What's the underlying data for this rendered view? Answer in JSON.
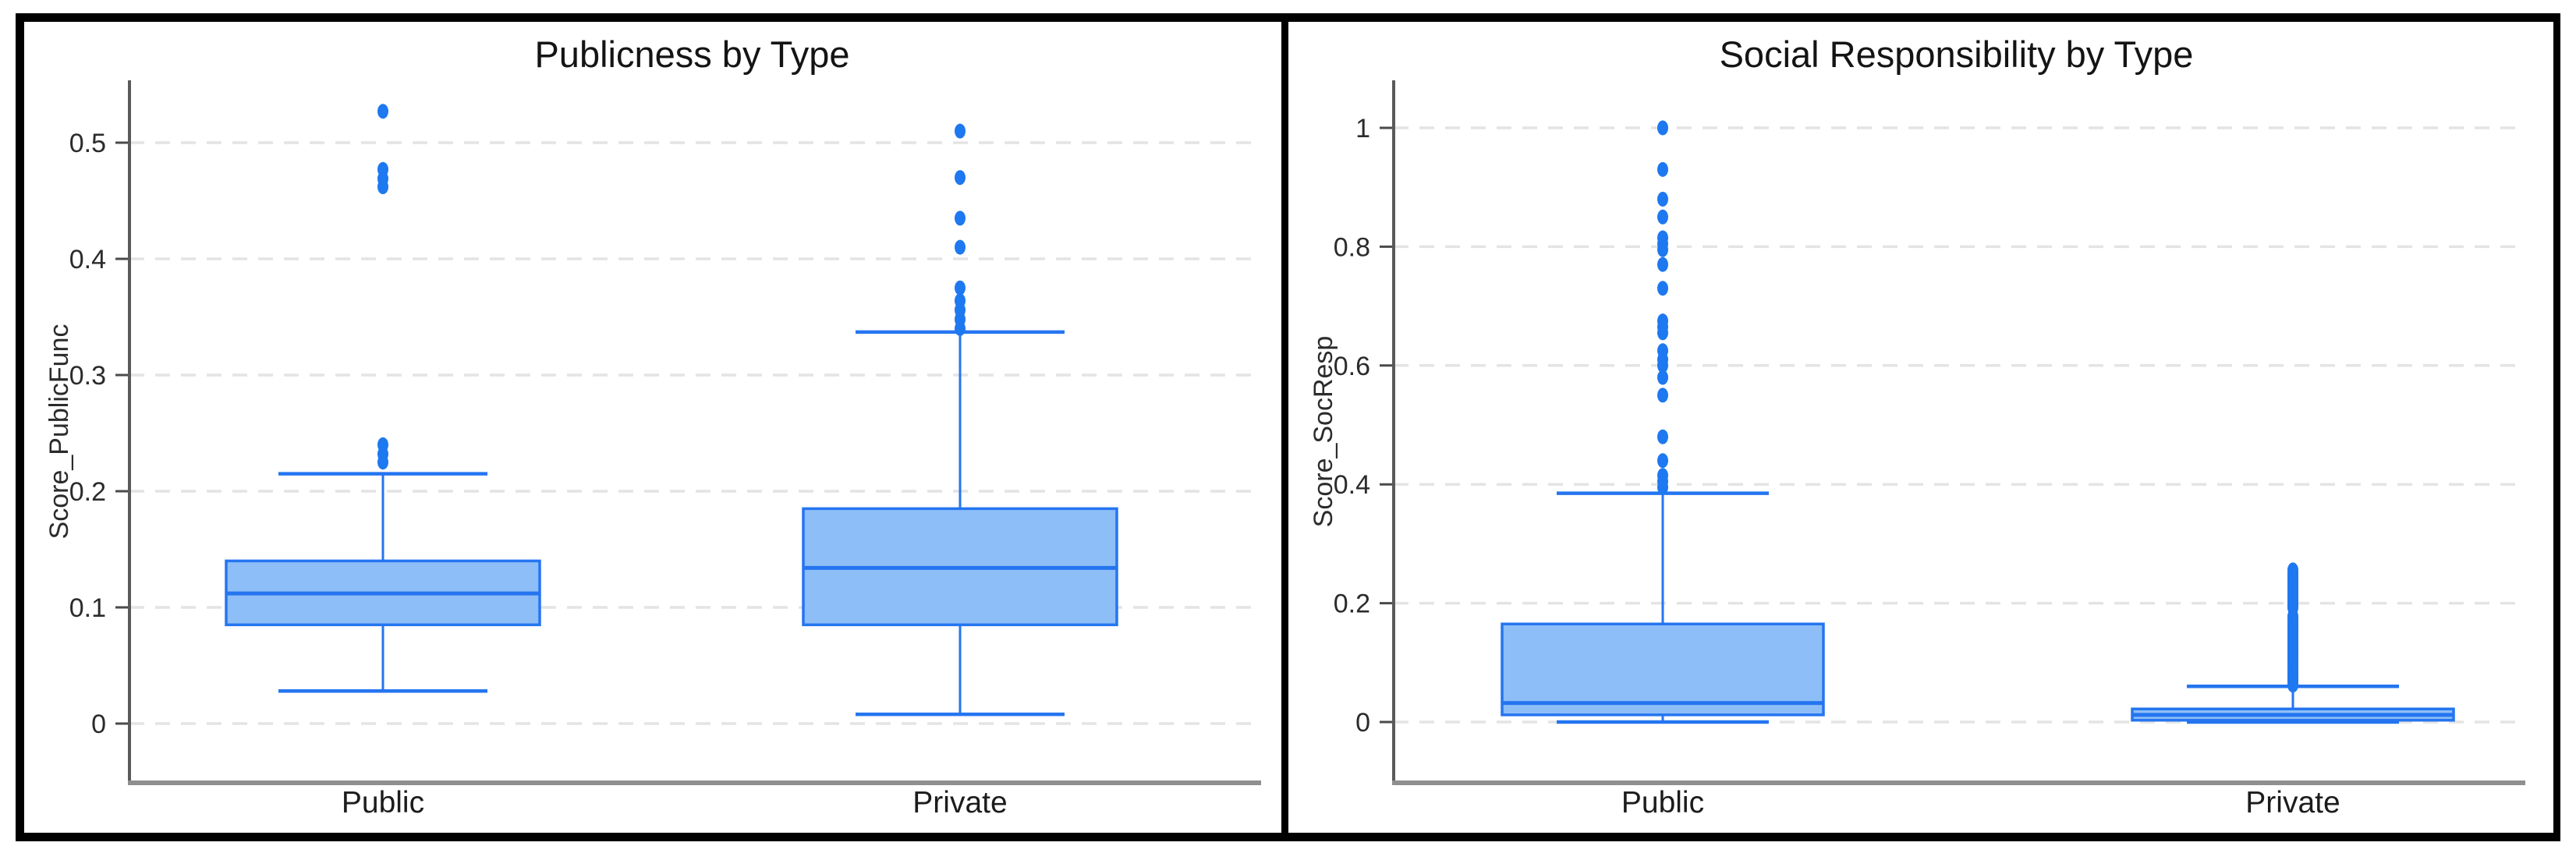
{
  "style": {
    "box_fill_color": "#8DBEF7",
    "box_line_color": "#2575F0",
    "outlier_color": "#1E78F0",
    "grid_color": "#e4e4e4",
    "axis_color": "#5a5a5a",
    "xaxis_line_color": "#8f8f8f",
    "text_color": "#141414",
    "frame_border_color": "#000000",
    "background": "#ffffff"
  },
  "chart_data": [
    {
      "type": "boxplot",
      "title": "Publicness by Type",
      "xlabel": "",
      "ylabel": "Score_PublicFunc",
      "categories": [
        "Public",
        "Private"
      ],
      "ylim": [
        -0.05,
        0.56
      ],
      "grid": "horizontal-dashed",
      "legend": "none",
      "yticks": [
        {
          "v": 0.5,
          "label": "0.5"
        },
        {
          "v": 0.4,
          "label": "0.4"
        },
        {
          "v": 0.3,
          "label": "0.3"
        },
        {
          "v": 0.2,
          "label": "0.2"
        },
        {
          "v": 0.1,
          "label": "0.1"
        },
        {
          "v": 0,
          "label": "0"
        }
      ],
      "series": [
        {
          "name": "Public",
          "low": 0.028,
          "q1": 0.085,
          "median": 0.112,
          "q3": 0.14,
          "high": 0.215,
          "outliers": [
            0.225,
            0.232,
            0.24,
            0.462,
            0.469,
            0.477,
            0.527
          ]
        },
        {
          "name": "Private",
          "low": 0.008,
          "q1": 0.085,
          "median": 0.134,
          "q3": 0.185,
          "high": 0.337,
          "outliers": [
            0.34,
            0.348,
            0.356,
            0.364,
            0.375,
            0.41,
            0.435,
            0.47,
            0.51
          ]
        }
      ]
    },
    {
      "type": "boxplot",
      "title": "Social Responsibility by Type",
      "xlabel": "",
      "ylabel": "Score_SocResp",
      "categories": [
        "Public",
        "Private"
      ],
      "ylim": [
        -0.09,
        1.08
      ],
      "grid": "horizontal-dashed",
      "legend": "none",
      "yticks": [
        {
          "v": 1,
          "label": "1"
        },
        {
          "v": 0.8,
          "label": "0.8"
        },
        {
          "v": 0.6,
          "label": "0.6"
        },
        {
          "v": 0.4,
          "label": "0.4"
        },
        {
          "v": 0.2,
          "label": "0.2"
        },
        {
          "v": 0,
          "label": "0"
        }
      ],
      "series": [
        {
          "name": "Public",
          "low": 0.0,
          "q1": 0.012,
          "median": 0.032,
          "q3": 0.165,
          "high": 0.385,
          "outliers": [
            0.395,
            0.405,
            0.415,
            0.44,
            0.48,
            0.55,
            0.58,
            0.6,
            0.61,
            0.625,
            0.655,
            0.665,
            0.675,
            0.73,
            0.77,
            0.795,
            0.805,
            0.815,
            0.85,
            0.88,
            0.93,
            1.0
          ]
        },
        {
          "name": "Private",
          "low": 0.0,
          "q1": 0.003,
          "median": 0.012,
          "q3": 0.022,
          "high": 0.06,
          "outliers": [
            0.062,
            0.066,
            0.07,
            0.074,
            0.078,
            0.082,
            0.086,
            0.09,
            0.094,
            0.098,
            0.102,
            0.106,
            0.11,
            0.114,
            0.118,
            0.122,
            0.126,
            0.13,
            0.134,
            0.138,
            0.142,
            0.146,
            0.15,
            0.154,
            0.158,
            0.162,
            0.166,
            0.17,
            0.174,
            0.178,
            0.192,
            0.196,
            0.2,
            0.204,
            0.208,
            0.212,
            0.216,
            0.22,
            0.224,
            0.228,
            0.232,
            0.236,
            0.24,
            0.244,
            0.248,
            0.252,
            0.256
          ]
        }
      ]
    }
  ]
}
